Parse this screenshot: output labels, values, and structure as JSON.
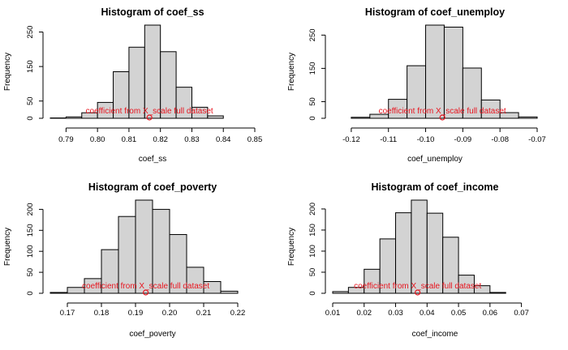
{
  "style": {
    "bar_fill": "#d3d3d3",
    "bar_stroke": "#000000",
    "annotation_color": "#e8141e"
  },
  "annotation_text": "coefficient from X_scale full dataset",
  "chart_data": [
    {
      "type": "bar",
      "title": "Histogram of coef_ss",
      "xlabel": "coef_ss",
      "ylabel": "Frequency",
      "bins": [
        0.785,
        0.79,
        0.795,
        0.8,
        0.805,
        0.81,
        0.815,
        0.82,
        0.825,
        0.83,
        0.835,
        0.84
      ],
      "counts": [
        1,
        4,
        16,
        46,
        135,
        206,
        270,
        193,
        90,
        32,
        7
      ],
      "xlim": [
        0.785,
        0.85
      ],
      "ylim": [
        0,
        270
      ],
      "xticks": [
        0.79,
        0.8,
        0.81,
        0.82,
        0.83,
        0.84,
        0.85
      ],
      "xtick_labels": [
        "0.79",
        "0.80",
        "0.81",
        "0.82",
        "0.83",
        "0.84",
        "0.85"
      ],
      "yticks": [
        0,
        50,
        150,
        250
      ],
      "ytick_labels": [
        "0",
        "50",
        "150",
        "250"
      ],
      "marker_x": 0.8165
    },
    {
      "type": "bar",
      "title": "Histogram of coef_unemploy",
      "xlabel": "coef_unemploy",
      "ylabel": "Frequency",
      "bins": [
        -0.12,
        -0.115,
        -0.11,
        -0.105,
        -0.1,
        -0.095,
        -0.09,
        -0.085,
        -0.08,
        -0.075,
        -0.07
      ],
      "counts": [
        3,
        12,
        57,
        158,
        280,
        274,
        151,
        55,
        17,
        4
      ],
      "xlim": [
        -0.125,
        -0.07
      ],
      "ylim": [
        0,
        280
      ],
      "xticks": [
        -0.12,
        -0.11,
        -0.1,
        -0.09,
        -0.08,
        -0.07
      ],
      "xtick_labels": [
        "-0.12",
        "-0.11",
        "-0.10",
        "-0.09",
        "-0.08",
        "-0.07"
      ],
      "yticks": [
        0,
        50,
        150,
        250
      ],
      "ytick_labels": [
        "0",
        "50",
        "150",
        "250"
      ],
      "marker_x": -0.0955
    },
    {
      "type": "bar",
      "title": "Histogram of coef_poverty",
      "xlabel": "coef_poverty",
      "ylabel": "Frequency",
      "bins": [
        0.165,
        0.17,
        0.175,
        0.18,
        0.185,
        0.19,
        0.195,
        0.2,
        0.205,
        0.21,
        0.215,
        0.22
      ],
      "counts": [
        2,
        14,
        35,
        104,
        183,
        222,
        200,
        140,
        62,
        28,
        5
      ],
      "xlim": [
        0.165,
        0.225
      ],
      "ylim": [
        0,
        222
      ],
      "xticks": [
        0.17,
        0.18,
        0.19,
        0.2,
        0.21,
        0.22
      ],
      "xtick_labels": [
        "0.17",
        "0.18",
        "0.19",
        "0.20",
        "0.21",
        "0.22"
      ],
      "yticks": [
        0,
        50,
        100,
        150,
        200
      ],
      "ytick_labels": [
        "0",
        "50",
        "100",
        "150",
        "200"
      ],
      "marker_x": 0.193
    },
    {
      "type": "bar",
      "title": "Histogram of coef_income",
      "xlabel": "coef_income",
      "ylabel": "Frequency",
      "bins": [
        0.01,
        0.015,
        0.02,
        0.025,
        0.03,
        0.035,
        0.04,
        0.045,
        0.05,
        0.055,
        0.06,
        0.065
      ],
      "counts": [
        4,
        14,
        57,
        129,
        191,
        221,
        190,
        133,
        43,
        18,
        2
      ],
      "xlim": [
        0.01,
        0.075
      ],
      "ylim": [
        0,
        221
      ],
      "xticks": [
        0.01,
        0.02,
        0.03,
        0.04,
        0.05,
        0.06,
        0.07
      ],
      "xtick_labels": [
        "0.01",
        "0.02",
        "0.03",
        "0.04",
        "0.05",
        "0.06",
        "0.07"
      ],
      "yticks": [
        0,
        50,
        100,
        150,
        200
      ],
      "ytick_labels": [
        "0",
        "50",
        "100",
        "150",
        "200"
      ],
      "marker_x": 0.037
    }
  ]
}
